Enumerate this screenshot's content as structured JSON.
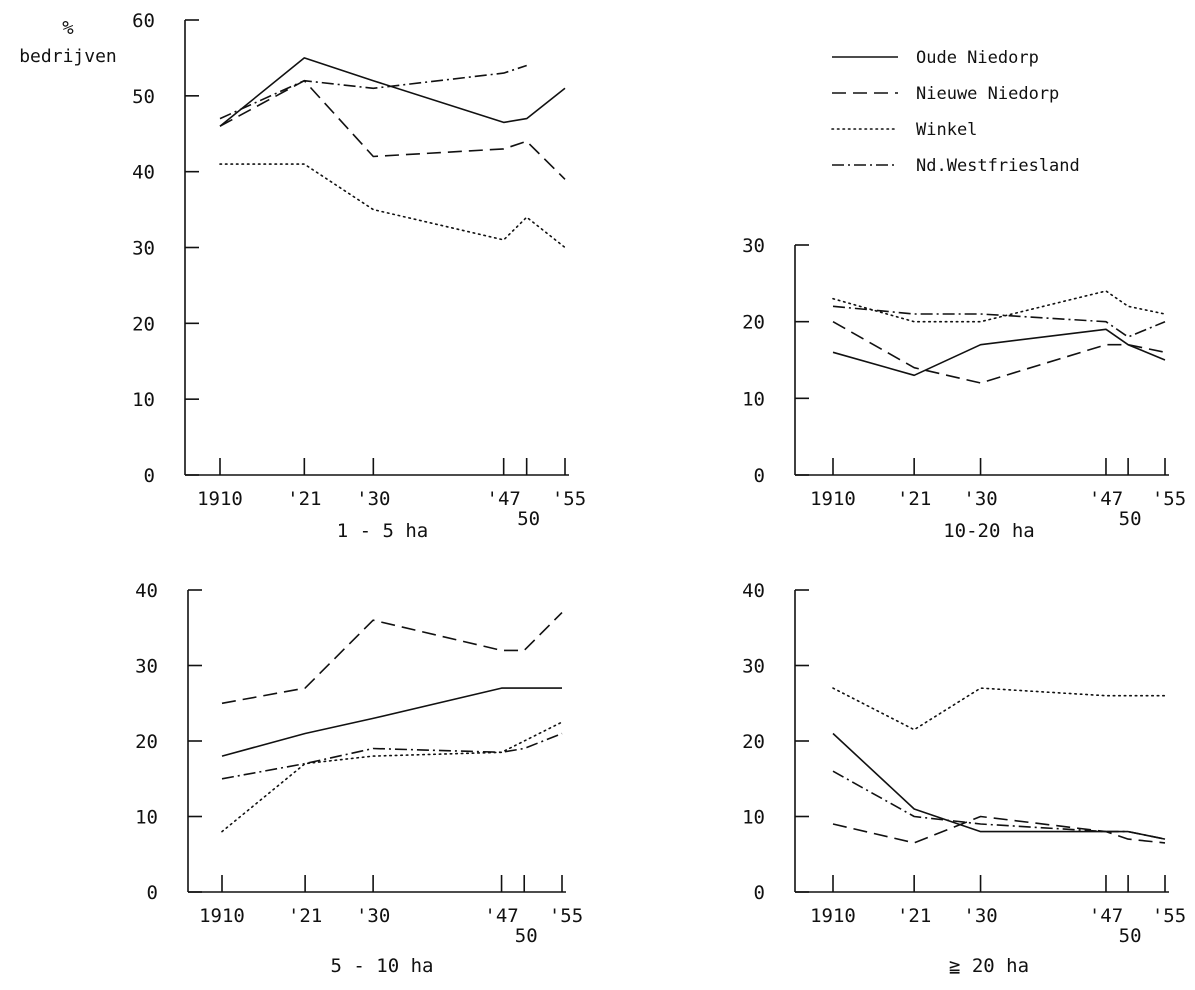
{
  "ylabel": "%\nbedrijven",
  "legend": {
    "placement": "top-right",
    "items": [
      {
        "name": "Oude Niedorp",
        "dash": "solid"
      },
      {
        "name": "Nieuwe Niedorp",
        "dash": "dashed"
      },
      {
        "name": "Winkel",
        "dash": "dotted"
      },
      {
        "name": "Nd.Westfriesland",
        "dash": "dashdot"
      }
    ]
  },
  "chart_data": [
    {
      "type": "line",
      "title": "1 - 5 ha",
      "ylim": [
        0,
        60
      ],
      "yticks": [
        0,
        10,
        20,
        30,
        40,
        50,
        60
      ],
      "x": [
        1910,
        1921,
        1930,
        1947,
        1950,
        1955
      ],
      "xtick_labels": [
        "1910",
        "'21",
        "'30",
        "'47",
        "50",
        "'55"
      ],
      "series": [
        {
          "name": "Oude Niedorp",
          "x": [
            1910,
            1921,
            1930,
            1947,
            1950,
            1955
          ],
          "values": [
            46,
            55,
            52,
            46.5,
            47,
            51
          ]
        },
        {
          "name": "Nieuwe Niedorp",
          "x": [
            1910,
            1921,
            1930,
            1947,
            1950,
            1955
          ],
          "values": [
            46,
            52,
            42,
            43,
            44,
            39
          ]
        },
        {
          "name": "Winkel",
          "x": [
            1910,
            1921,
            1930,
            1947,
            1950,
            1955
          ],
          "values": [
            41,
            41,
            35,
            31,
            34,
            30
          ]
        },
        {
          "name": "Nd.Westfriesland",
          "x": [
            1910,
            1921,
            1930,
            1947,
            1950
          ],
          "values": [
            47,
            52,
            51,
            53,
            54
          ]
        }
      ]
    },
    {
      "type": "line",
      "title": "10-20 ha",
      "ylim": [
        0,
        30
      ],
      "yticks": [
        0,
        10,
        20,
        30
      ],
      "x": [
        1910,
        1921,
        1930,
        1947,
        1950,
        1955
      ],
      "xtick_labels": [
        "1910",
        "'21",
        "'30",
        "'47",
        "50",
        "'55"
      ],
      "series": [
        {
          "name": "Oude Niedorp",
          "x": [
            1910,
            1921,
            1930,
            1947,
            1950,
            1955
          ],
          "values": [
            16,
            13,
            17,
            19,
            17,
            15
          ]
        },
        {
          "name": "Nieuwe Niedorp",
          "x": [
            1910,
            1921,
            1930,
            1947,
            1950,
            1955
          ],
          "values": [
            20,
            14,
            12,
            17,
            17,
            16
          ]
        },
        {
          "name": "Winkel",
          "x": [
            1910,
            1921,
            1930,
            1947,
            1950,
            1955
          ],
          "values": [
            23,
            20,
            20,
            24,
            22,
            21
          ]
        },
        {
          "name": "Nd.Westfriesland",
          "x": [
            1910,
            1921,
            1930,
            1947,
            1950,
            1955
          ],
          "values": [
            22,
            21,
            21,
            20,
            18,
            20
          ]
        }
      ]
    },
    {
      "type": "line",
      "title": "5 - 10 ha",
      "ylim": [
        0,
        40
      ],
      "yticks": [
        0,
        10,
        20,
        30,
        40
      ],
      "x": [
        1910,
        1921,
        1930,
        1947,
        1950,
        1955
      ],
      "xtick_labels": [
        "1910",
        "'21",
        "'30",
        "'47",
        "50",
        "'55"
      ],
      "series": [
        {
          "name": "Oude Niedorp",
          "x": [
            1910,
            1921,
            1930,
            1947,
            1950,
            1955
          ],
          "values": [
            18,
            21,
            23,
            27,
            27,
            27
          ]
        },
        {
          "name": "Nieuwe Niedorp",
          "x": [
            1910,
            1921,
            1930,
            1947,
            1950,
            1955
          ],
          "values": [
            25,
            27,
            36,
            32,
            32,
            37
          ]
        },
        {
          "name": "Winkel",
          "x": [
            1910,
            1921,
            1930,
            1947,
            1950,
            1955
          ],
          "values": [
            8,
            17,
            18,
            18.5,
            20,
            22.5
          ]
        },
        {
          "name": "Nd.Westfriesland",
          "x": [
            1910,
            1921,
            1930,
            1947,
            1950,
            1955
          ],
          "values": [
            15,
            17,
            19,
            18.5,
            19,
            21
          ]
        }
      ]
    },
    {
      "type": "line",
      "title": "≧ 20 ha",
      "ylim": [
        0,
        40
      ],
      "yticks": [
        0,
        10,
        20,
        30,
        40
      ],
      "x": [
        1910,
        1921,
        1930,
        1947,
        1950,
        1955
      ],
      "xtick_labels": [
        "1910",
        "'21",
        "'30",
        "'47",
        "50",
        "'55"
      ],
      "series": [
        {
          "name": "Oude Niedorp",
          "x": [
            1910,
            1921,
            1930,
            1947,
            1950,
            1955
          ],
          "values": [
            21,
            11,
            8,
            8,
            8,
            7
          ]
        },
        {
          "name": "Nieuwe Niedorp",
          "x": [
            1910,
            1921,
            1930,
            1947,
            1950,
            1955
          ],
          "values": [
            9,
            6.5,
            10,
            8,
            7,
            6.5
          ]
        },
        {
          "name": "Winkel",
          "x": [
            1910,
            1921,
            1930,
            1947,
            1950,
            1955
          ],
          "values": [
            27,
            21.5,
            27,
            26,
            26,
            26
          ]
        },
        {
          "name": "Nd.Westfriesland",
          "x": [
            1910,
            1921,
            1930,
            1947,
            1950,
            1955
          ],
          "values": [
            16,
            10,
            9,
            8,
            8,
            7
          ]
        }
      ]
    }
  ]
}
